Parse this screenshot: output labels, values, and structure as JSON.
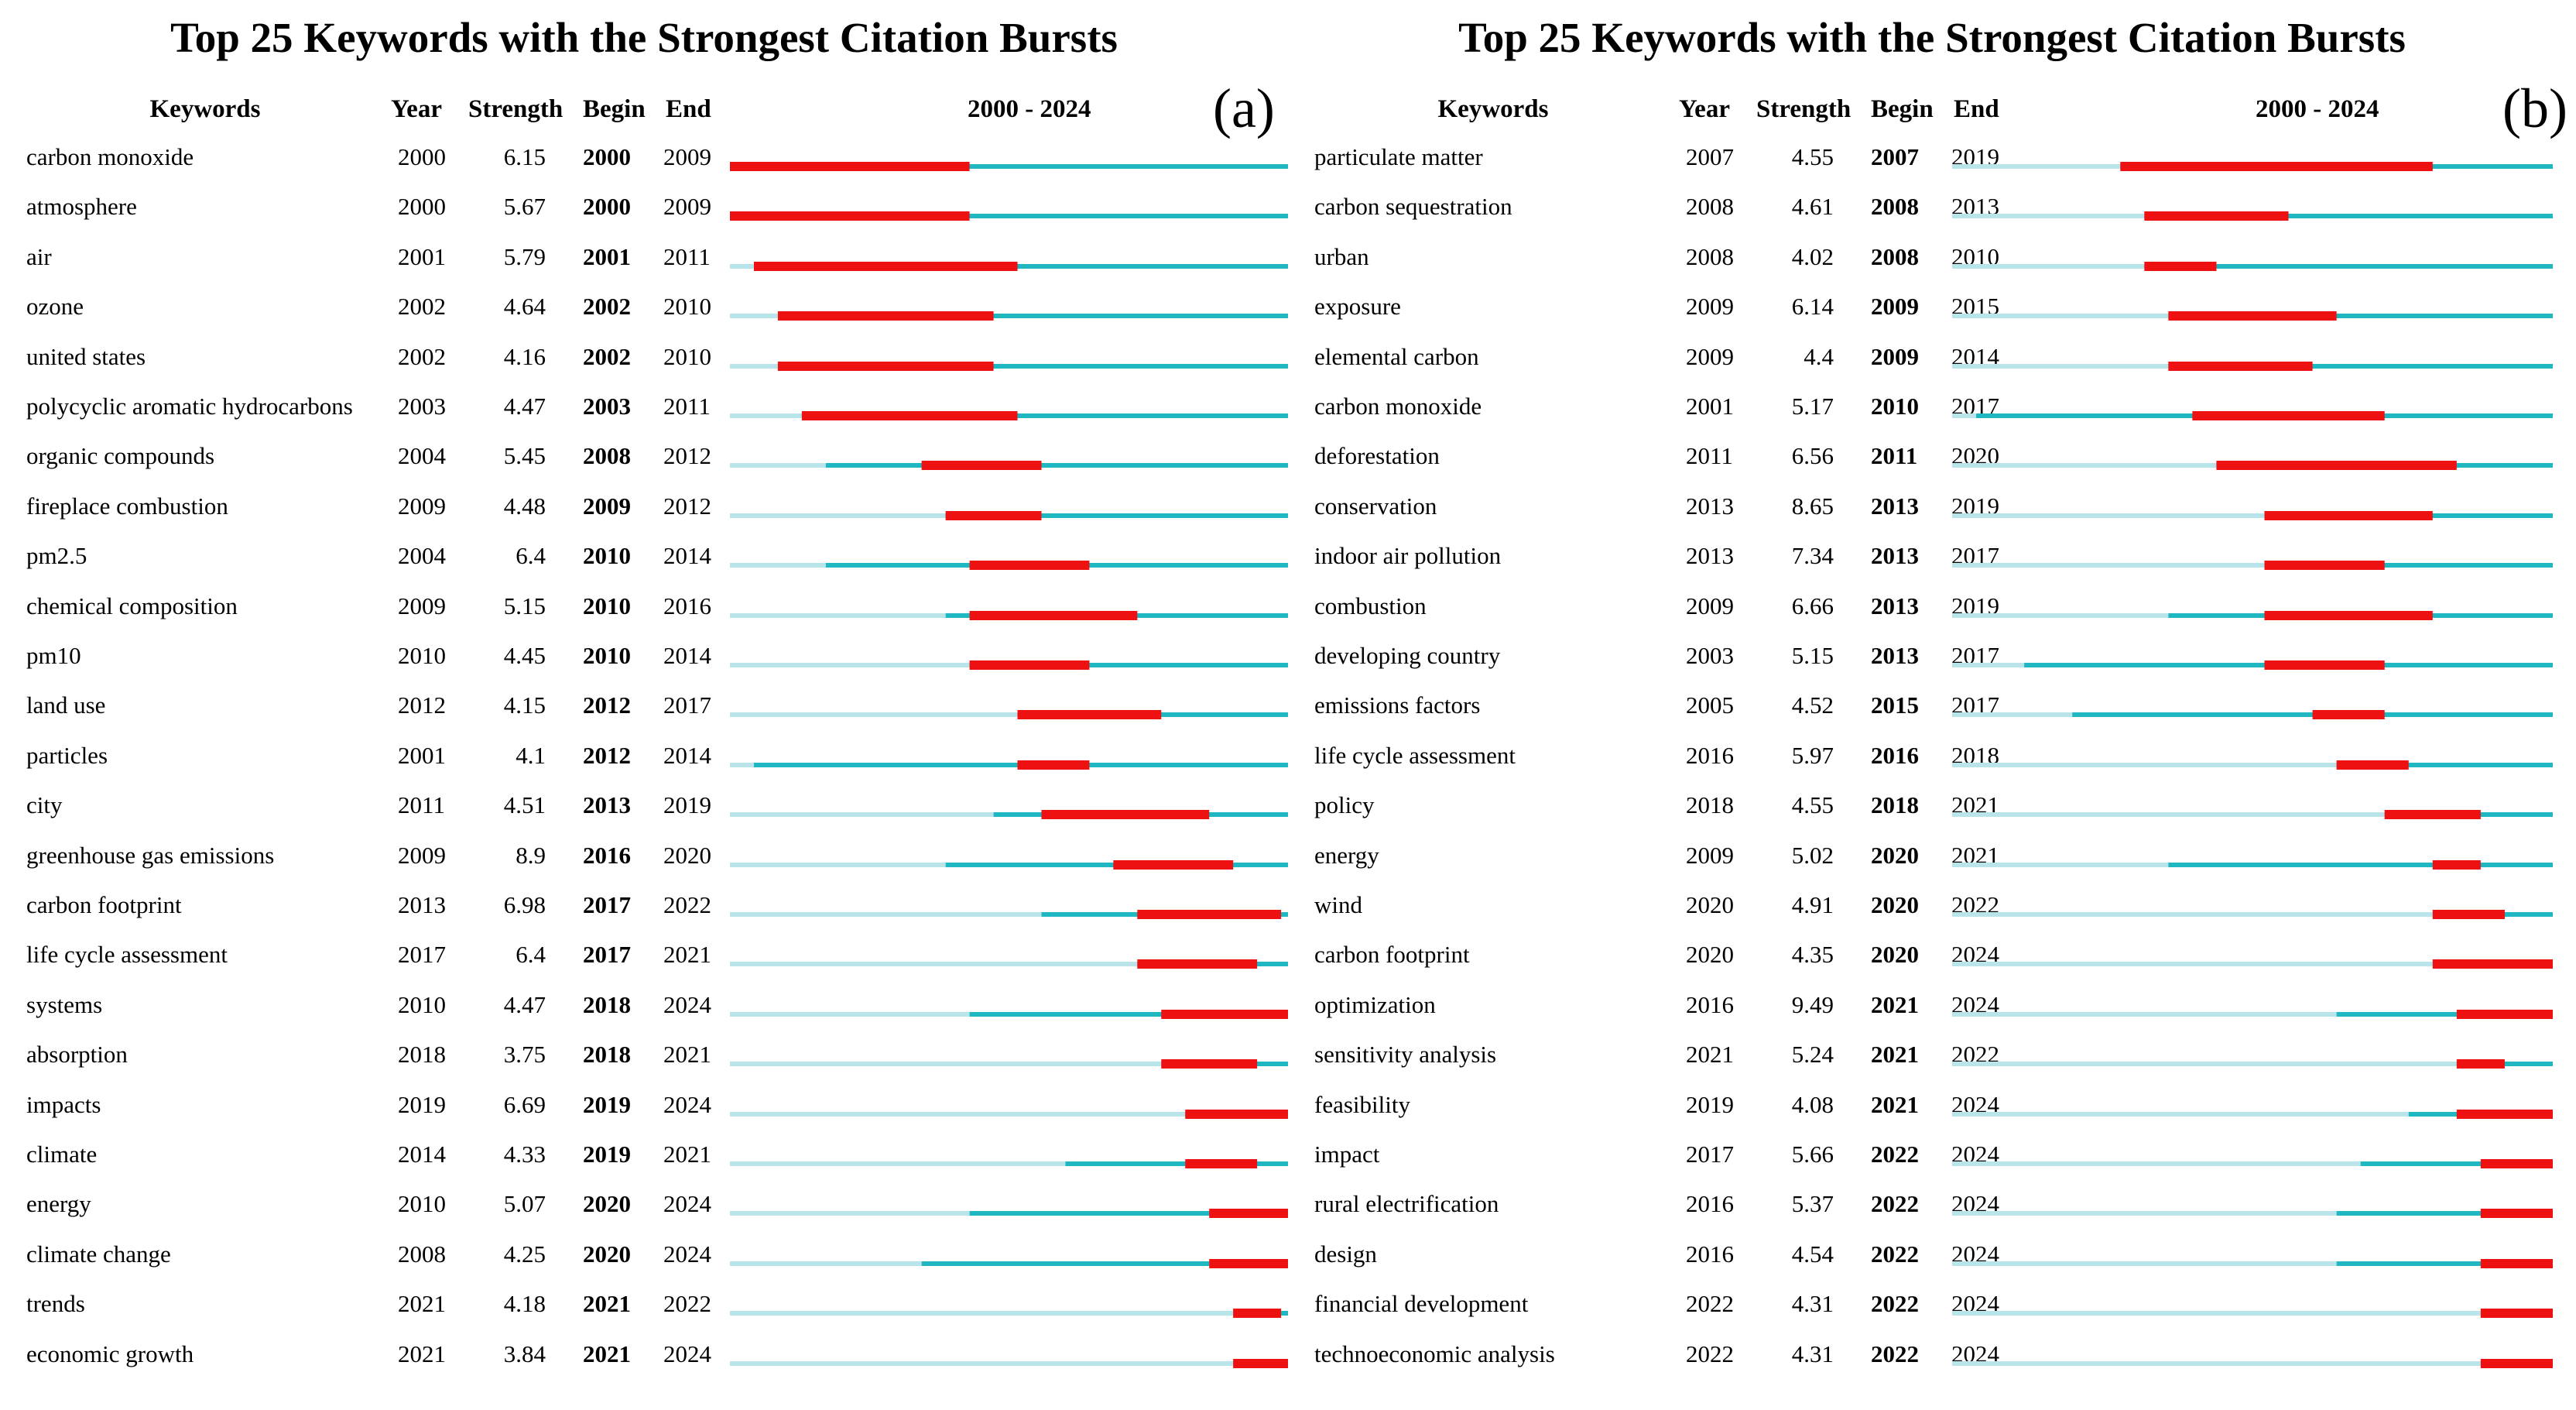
{
  "colors": {
    "background": "#ffffff",
    "before": "#b9e4ea",
    "period": "#1fb7c2",
    "burst": "#ee1111"
  },
  "panels": [
    {
      "id": "a",
      "title": "Top 25 Keywords with the Strongest Citation Bursts",
      "letter": "(a)",
      "headers": {
        "keywords": "Keywords",
        "year": "Year",
        "strength": "Strength",
        "begin": "Begin",
        "end": "End",
        "range": "2000 - 2024"
      }
    },
    {
      "id": "b",
      "title": "Top 25 Keywords with the Strongest Citation Bursts",
      "letter": "(b)",
      "headers": {
        "keywords": "Keywords",
        "year": "Year",
        "strength": "Strength",
        "begin": "Begin",
        "end": "End",
        "range": "2000 - 2024"
      }
    }
  ],
  "chart_data": [
    {
      "type": "table",
      "title": "Top 25 Keywords with the Strongest Citation Bursts",
      "panel": "(a)",
      "range": [
        2000,
        2024
      ],
      "columns": [
        "Keywords",
        "Year",
        "Strength",
        "Begin",
        "End"
      ],
      "rows": [
        {
          "keyword": "carbon monoxide",
          "year": "2000",
          "strength": "6.15",
          "begin": "2000",
          "end": "2009"
        },
        {
          "keyword": "atmosphere",
          "year": "2000",
          "strength": "5.67",
          "begin": "2000",
          "end": "2009"
        },
        {
          "keyword": "air",
          "year": "2001",
          "strength": "5.79",
          "begin": "2001",
          "end": "2011"
        },
        {
          "keyword": "ozone",
          "year": "2002",
          "strength": "4.64",
          "begin": "2002",
          "end": "2010"
        },
        {
          "keyword": "united states",
          "year": "2002",
          "strength": "4.16",
          "begin": "2002",
          "end": "2010"
        },
        {
          "keyword": "polycyclic aromatic hydrocarbons",
          "year": "2003",
          "strength": "4.47",
          "begin": "2003",
          "end": "2011"
        },
        {
          "keyword": "organic compounds",
          "year": "2004",
          "strength": "5.45",
          "begin": "2008",
          "end": "2012"
        },
        {
          "keyword": "fireplace combustion",
          "year": "2009",
          "strength": "4.48",
          "begin": "2009",
          "end": "2012"
        },
        {
          "keyword": "pm2.5",
          "year": "2004",
          "strength": "6.4",
          "begin": "2010",
          "end": "2014"
        },
        {
          "keyword": "chemical composition",
          "year": "2009",
          "strength": "5.15",
          "begin": "2010",
          "end": "2016"
        },
        {
          "keyword": "pm10",
          "year": "2010",
          "strength": "4.45",
          "begin": "2010",
          "end": "2014"
        },
        {
          "keyword": "land use",
          "year": "2012",
          "strength": "4.15",
          "begin": "2012",
          "end": "2017"
        },
        {
          "keyword": "particles",
          "year": "2001",
          "strength": "4.1",
          "begin": "2012",
          "end": "2014"
        },
        {
          "keyword": "city",
          "year": "2011",
          "strength": "4.51",
          "begin": "2013",
          "end": "2019"
        },
        {
          "keyword": "greenhouse gas emissions",
          "year": "2009",
          "strength": "8.9",
          "begin": "2016",
          "end": "2020"
        },
        {
          "keyword": "carbon footprint",
          "year": "2013",
          "strength": "6.98",
          "begin": "2017",
          "end": "2022"
        },
        {
          "keyword": "life cycle assessment",
          "year": "2017",
          "strength": "6.4",
          "begin": "2017",
          "end": "2021"
        },
        {
          "keyword": "systems",
          "year": "2010",
          "strength": "4.47",
          "begin": "2018",
          "end": "2024"
        },
        {
          "keyword": "absorption",
          "year": "2018",
          "strength": "3.75",
          "begin": "2018",
          "end": "2021"
        },
        {
          "keyword": "impacts",
          "year": "2019",
          "strength": "6.69",
          "begin": "2019",
          "end": "2024"
        },
        {
          "keyword": "climate",
          "year": "2014",
          "strength": "4.33",
          "begin": "2019",
          "end": "2021"
        },
        {
          "keyword": "energy",
          "year": "2010",
          "strength": "5.07",
          "begin": "2020",
          "end": "2024"
        },
        {
          "keyword": "climate change",
          "year": "2008",
          "strength": "4.25",
          "begin": "2020",
          "end": "2024"
        },
        {
          "keyword": "trends",
          "year": "2021",
          "strength": "4.18",
          "begin": "2021",
          "end": "2022"
        },
        {
          "keyword": "economic growth",
          "year": "2021",
          "strength": "3.84",
          "begin": "2021",
          "end": "2024"
        }
      ]
    },
    {
      "type": "table",
      "title": "Top 25 Keywords with the Strongest Citation Bursts",
      "panel": "(b)",
      "range": [
        2000,
        2024
      ],
      "columns": [
        "Keywords",
        "Year",
        "Strength",
        "Begin",
        "End"
      ],
      "rows": [
        {
          "keyword": "particulate matter",
          "year": "2007",
          "strength": "4.55",
          "begin": "2007",
          "end": "2019"
        },
        {
          "keyword": "carbon sequestration",
          "year": "2008",
          "strength": "4.61",
          "begin": "2008",
          "end": "2013"
        },
        {
          "keyword": "urban",
          "year": "2008",
          "strength": "4.02",
          "begin": "2008",
          "end": "2010"
        },
        {
          "keyword": "exposure",
          "year": "2009",
          "strength": "6.14",
          "begin": "2009",
          "end": "2015"
        },
        {
          "keyword": "elemental carbon",
          "year": "2009",
          "strength": "4.4",
          "begin": "2009",
          "end": "2014"
        },
        {
          "keyword": "carbon monoxide",
          "year": "2001",
          "strength": "5.17",
          "begin": "2010",
          "end": "2017"
        },
        {
          "keyword": "deforestation",
          "year": "2011",
          "strength": "6.56",
          "begin": "2011",
          "end": "2020"
        },
        {
          "keyword": "conservation",
          "year": "2013",
          "strength": "8.65",
          "begin": "2013",
          "end": "2019"
        },
        {
          "keyword": "indoor air pollution",
          "year": "2013",
          "strength": "7.34",
          "begin": "2013",
          "end": "2017"
        },
        {
          "keyword": "combustion",
          "year": "2009",
          "strength": "6.66",
          "begin": "2013",
          "end": "2019"
        },
        {
          "keyword": "developing country",
          "year": "2003",
          "strength": "5.15",
          "begin": "2013",
          "end": "2017"
        },
        {
          "keyword": "emissions factors",
          "year": "2005",
          "strength": "4.52",
          "begin": "2015",
          "end": "2017"
        },
        {
          "keyword": "life cycle assessment",
          "year": "2016",
          "strength": "5.97",
          "begin": "2016",
          "end": "2018"
        },
        {
          "keyword": "policy",
          "year": "2018",
          "strength": "4.55",
          "begin": "2018",
          "end": "2021"
        },
        {
          "keyword": "energy",
          "year": "2009",
          "strength": "5.02",
          "begin": "2020",
          "end": "2021"
        },
        {
          "keyword": "wind",
          "year": "2020",
          "strength": "4.91",
          "begin": "2020",
          "end": "2022"
        },
        {
          "keyword": "carbon footprint",
          "year": "2020",
          "strength": "4.35",
          "begin": "2020",
          "end": "2024"
        },
        {
          "keyword": "optimization",
          "year": "2016",
          "strength": "9.49",
          "begin": "2021",
          "end": "2024"
        },
        {
          "keyword": "sensitivity analysis",
          "year": "2021",
          "strength": "5.24",
          "begin": "2021",
          "end": "2022"
        },
        {
          "keyword": "feasibility",
          "year": "2019",
          "strength": "4.08",
          "begin": "2021",
          "end": "2024"
        },
        {
          "keyword": "impact",
          "year": "2017",
          "strength": "5.66",
          "begin": "2022",
          "end": "2024"
        },
        {
          "keyword": "rural electrification",
          "year": "2016",
          "strength": "5.37",
          "begin": "2022",
          "end": "2024"
        },
        {
          "keyword": "design",
          "year": "2016",
          "strength": "4.54",
          "begin": "2022",
          "end": "2024"
        },
        {
          "keyword": "financial development",
          "year": "2022",
          "strength": "4.31",
          "begin": "2022",
          "end": "2024"
        },
        {
          "keyword": "technoeconomic analysis",
          "year": "2022",
          "strength": "4.31",
          "begin": "2022",
          "end": "2024"
        }
      ]
    }
  ]
}
